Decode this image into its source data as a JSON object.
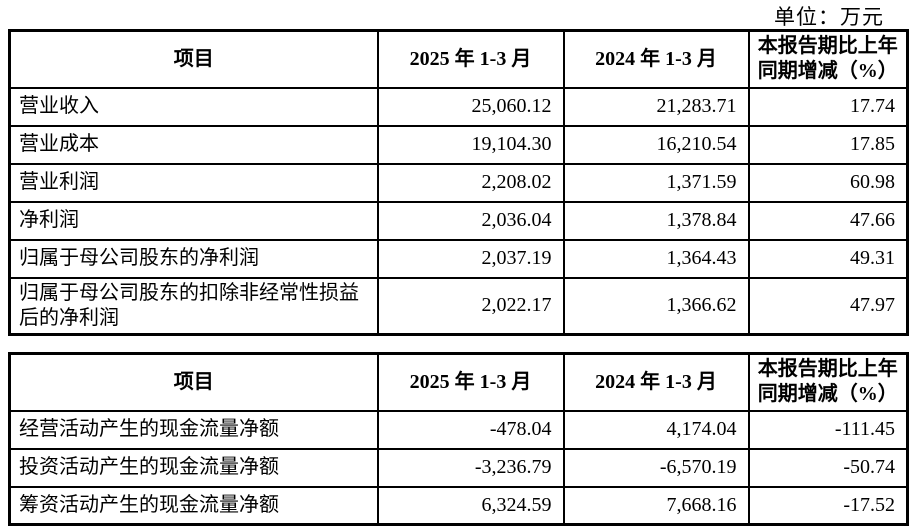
{
  "page": {
    "unit_label": "单位：万元"
  },
  "tables": [
    {
      "name": "operating-results",
      "headers": [
        "项目",
        "2025 年 1-3 月",
        "2024 年 1-3 月",
        "本报告期比上年同期增减（%）"
      ],
      "rows": [
        {
          "label": "营业收入",
          "values": [
            "25,060.12",
            "21,283.71",
            "17.74"
          ]
        },
        {
          "label": "营业成本",
          "values": [
            "19,104.30",
            "16,210.54",
            "17.85"
          ]
        },
        {
          "label": "营业利润",
          "values": [
            "2,208.02",
            "1,371.59",
            "60.98"
          ]
        },
        {
          "label": "净利润",
          "values": [
            "2,036.04",
            "1,378.84",
            "47.66"
          ]
        },
        {
          "label": "归属于母公司股东的净利润",
          "values": [
            "2,037.19",
            "1,364.43",
            "49.31"
          ]
        },
        {
          "label": "归属于母公司股东的扣除非经常性损益后的净利润",
          "values": [
            "2,022.17",
            "1,366.62",
            "47.97"
          ]
        }
      ]
    },
    {
      "name": "cash-flow",
      "headers": [
        "项目",
        "2025 年 1-3 月",
        "2024 年 1-3 月",
        "本报告期比上年同期增减（%）"
      ],
      "rows": [
        {
          "label": "经营活动产生的现金流量净额",
          "values": [
            "-478.04",
            "4,174.04",
            "-111.45"
          ]
        },
        {
          "label": "投资活动产生的现金流量净额",
          "values": [
            "-3,236.79",
            "-6,570.19",
            "-50.74"
          ]
        },
        {
          "label": "筹资活动产生的现金流量净额",
          "values": [
            "6,324.59",
            "7,668.16",
            "-17.52"
          ]
        }
      ]
    }
  ]
}
